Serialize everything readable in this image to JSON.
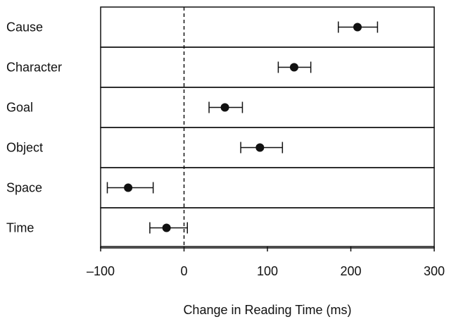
{
  "chart_data": {
    "type": "scatter",
    "subtype": "dot-plot-with-error-bars",
    "categories": [
      "Cause",
      "Character",
      "Goal",
      "Object",
      "Space",
      "Time"
    ],
    "values": [
      208,
      132,
      49,
      91,
      -67,
      -21
    ],
    "error_low": [
      185,
      113,
      30,
      68,
      -92,
      -41
    ],
    "error_high": [
      232,
      152,
      70,
      118,
      -37,
      4
    ],
    "xlabel": "Change in Reading Time (ms)",
    "xlim": [
      -100,
      300
    ],
    "xticks": [
      -100,
      0,
      100,
      200,
      300
    ],
    "xtick_labels": [
      "–100",
      "0",
      "100",
      "200",
      "300"
    ],
    "reference_line": 0,
    "reference_line_style": "dashed",
    "grid": false,
    "colors": {
      "marker": "#111111",
      "line": "#111111",
      "background": "#ffffff"
    }
  }
}
